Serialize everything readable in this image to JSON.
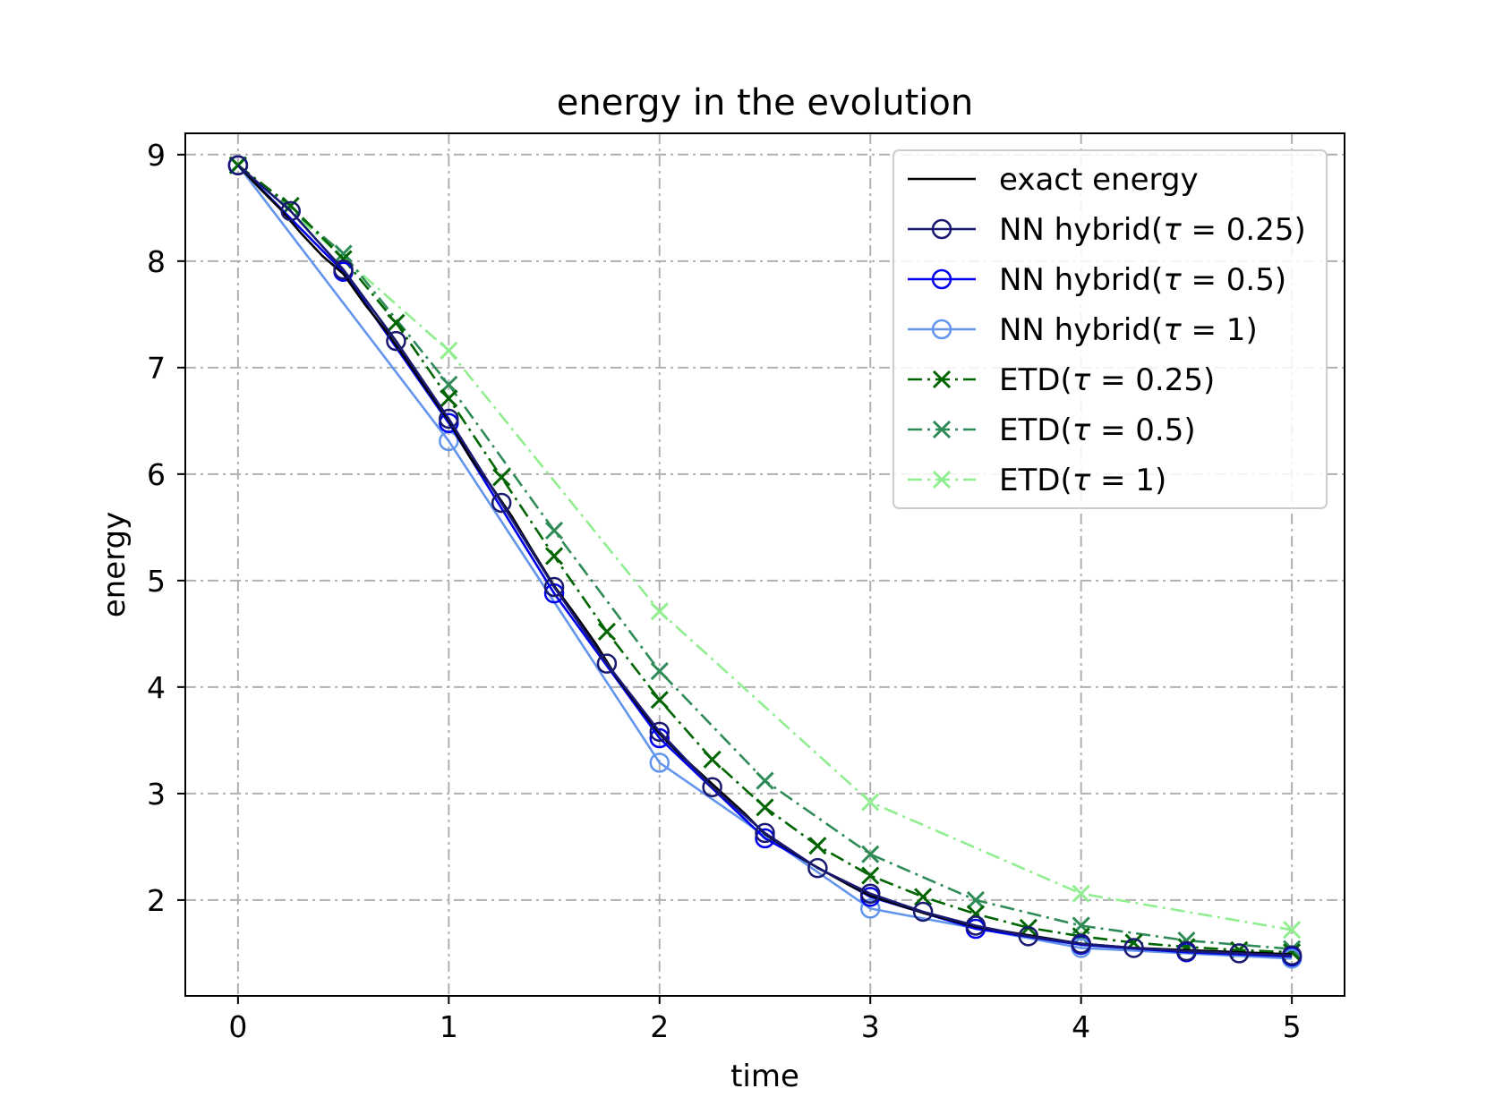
{
  "chart_data": {
    "type": "line",
    "title": "energy in the evolution",
    "xlabel": "time",
    "ylabel": "energy",
    "xlim": [
      -0.25,
      5.25
    ],
    "ylim": [
      1.1,
      9.2
    ],
    "xticks": [
      0,
      1,
      2,
      3,
      4,
      5
    ],
    "xtick_labels": [
      "0",
      "1",
      "2",
      "3",
      "4",
      "5"
    ],
    "yticks": [
      2,
      3,
      4,
      5,
      6,
      7,
      8,
      9
    ],
    "ytick_labels": [
      "2",
      "3",
      "4",
      "5",
      "6",
      "7",
      "8",
      "9"
    ],
    "grid": true,
    "legend_position": "top-right",
    "series": [
      {
        "name": "exact energy",
        "legend_prefix": "exact energy",
        "legend_tau": "",
        "color": "#000000",
        "marker": "none",
        "dash": "solid",
        "x": [
          0,
          0.1,
          0.2,
          0.3,
          0.4,
          0.5,
          0.6,
          0.7,
          0.8,
          0.9,
          1.0,
          1.1,
          1.2,
          1.3,
          1.4,
          1.5,
          1.6,
          1.7,
          1.8,
          1.9,
          2.0,
          2.1,
          2.2,
          2.3,
          2.4,
          2.5,
          2.6,
          2.7,
          2.8,
          2.9,
          3.0,
          3.25,
          3.5,
          3.75,
          4.0,
          4.25,
          4.5,
          4.75,
          5.0
        ],
        "y": [
          8.9,
          8.69,
          8.49,
          8.26,
          8.05,
          7.88,
          7.6,
          7.35,
          7.07,
          6.78,
          6.5,
          6.16,
          5.89,
          5.6,
          5.27,
          4.95,
          4.68,
          4.4,
          4.08,
          3.82,
          3.56,
          3.36,
          3.18,
          3.0,
          2.82,
          2.62,
          2.49,
          2.36,
          2.25,
          2.14,
          2.04,
          1.88,
          1.75,
          1.67,
          1.59,
          1.55,
          1.53,
          1.51,
          1.49
        ]
      },
      {
        "name": "NN hybrid(τ = 0.25)",
        "legend_prefix": "NN hybrid",
        "legend_tau": "0.25",
        "color": "#191970",
        "marker": "circle",
        "dash": "solid",
        "x": [
          0,
          0.25,
          0.5,
          0.75,
          1.0,
          1.25,
          1.5,
          1.75,
          2.0,
          2.25,
          2.5,
          2.75,
          3.0,
          3.25,
          3.5,
          3.75,
          4.0,
          4.25,
          4.5,
          4.75,
          5.0
        ],
        "y": [
          8.9,
          8.47,
          7.92,
          7.25,
          6.52,
          5.73,
          4.94,
          4.22,
          3.58,
          3.06,
          2.63,
          2.3,
          2.06,
          1.89,
          1.76,
          1.66,
          1.59,
          1.55,
          1.52,
          1.5,
          1.48
        ]
      },
      {
        "name": "NN hybrid(τ = 0.5)",
        "legend_prefix": "NN hybrid",
        "legend_tau": "0.5",
        "color": "#0000ee",
        "marker": "circle",
        "dash": "solid",
        "x": [
          0,
          0.5,
          1.0,
          1.5,
          2.0,
          2.5,
          3.0,
          3.5,
          4.0,
          4.5,
          5.0
        ],
        "y": [
          8.9,
          7.9,
          6.48,
          4.88,
          3.52,
          2.58,
          2.03,
          1.73,
          1.58,
          1.51,
          1.47
        ]
      },
      {
        "name": "NN hybrid(τ = 1)",
        "legend_prefix": "NN hybrid",
        "legend_tau": "1",
        "color": "#6495ed",
        "marker": "circle",
        "dash": "solid",
        "x": [
          0,
          1.0,
          2.0,
          3.0,
          4.0,
          5.0
        ],
        "y": [
          8.9,
          6.31,
          3.29,
          1.92,
          1.55,
          1.45
        ]
      },
      {
        "name": "ETD(τ = 0.25)",
        "legend_prefix": "ETD",
        "legend_tau": "0.25",
        "color": "#006400",
        "marker": "x",
        "dash": "dashdot",
        "x": [
          0,
          0.25,
          0.5,
          0.75,
          1.0,
          1.25,
          1.5,
          1.75,
          2.0,
          2.25,
          2.5,
          2.75,
          3.0,
          3.25,
          3.5,
          3.75,
          4.0,
          4.25,
          4.5,
          4.75,
          5.0
        ],
        "y": [
          8.9,
          8.52,
          8.02,
          7.42,
          6.71,
          5.97,
          5.23,
          4.52,
          3.88,
          3.32,
          2.87,
          2.51,
          2.23,
          2.03,
          1.87,
          1.74,
          1.66,
          1.6,
          1.56,
          1.53,
          1.51
        ]
      },
      {
        "name": "ETD(τ = 0.5)",
        "legend_prefix": "ETD",
        "legend_tau": "0.5",
        "color": "#2e8b57",
        "marker": "x",
        "dash": "dashdot",
        "x": [
          0,
          0.5,
          1.0,
          1.5,
          2.0,
          2.5,
          3.0,
          3.5,
          4.0,
          4.5,
          5.0
        ],
        "y": [
          8.9,
          8.07,
          6.84,
          5.47,
          4.15,
          3.12,
          2.43,
          2.0,
          1.76,
          1.62,
          1.54
        ]
      },
      {
        "name": "ETD(τ = 1)",
        "legend_prefix": "ETD",
        "legend_tau": "1",
        "color": "#90ee90",
        "marker": "x",
        "dash": "dashdot",
        "x": [
          0,
          1.0,
          2.0,
          3.0,
          4.0,
          5.0
        ],
        "y": [
          8.9,
          7.16,
          4.71,
          2.92,
          2.06,
          1.72
        ]
      }
    ]
  }
}
